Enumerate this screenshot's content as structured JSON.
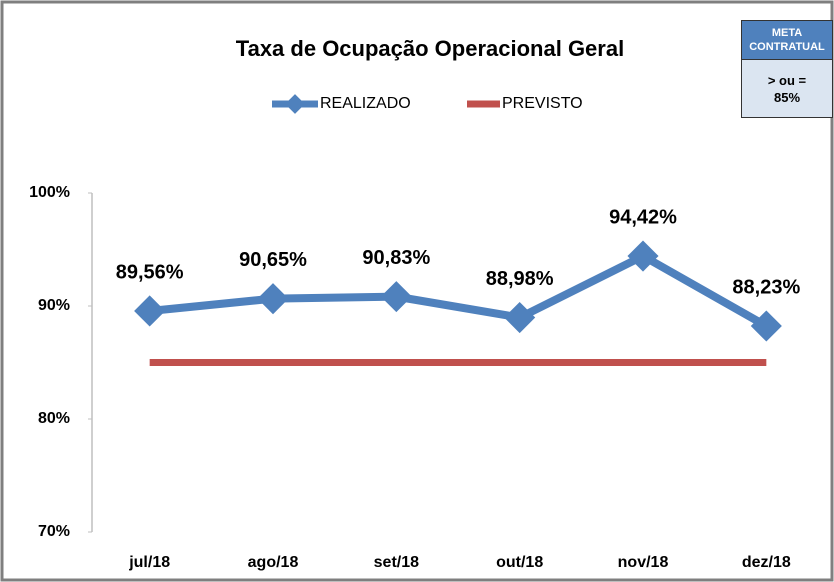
{
  "chart_data": {
    "type": "line",
    "title": "Taxa de Ocupação Operacional Geral",
    "categories": [
      "jul/18",
      "ago/18",
      "set/18",
      "out/18",
      "nov/18",
      "dez/18"
    ],
    "series": [
      {
        "name": "REALIZADO",
        "color": "#4f81bd",
        "values": [
          89.56,
          90.65,
          90.83,
          88.98,
          94.42,
          88.23
        ],
        "value_labels": [
          "89,56%",
          "90,65%",
          "90,83%",
          "88,98%",
          "94,42%",
          "88,23%"
        ]
      },
      {
        "name": "PREVISTO",
        "color": "#c0504d",
        "values": [
          85,
          85,
          85,
          85,
          85,
          85
        ]
      }
    ],
    "ylim": [
      70,
      100
    ],
    "yticks": [
      {
        "value": 70,
        "label": "70%"
      },
      {
        "value": 80,
        "label": "80%"
      },
      {
        "value": 90,
        "label": "90%"
      },
      {
        "value": 100,
        "label": "100%"
      }
    ],
    "grid": false,
    "legend": "top",
    "annotation": {
      "title": "META CONTRATUAL",
      "text": "> ou = 85%"
    }
  }
}
